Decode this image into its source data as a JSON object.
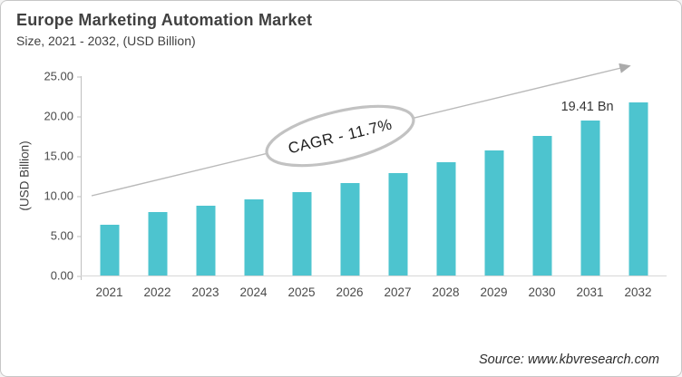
{
  "header": {
    "title": "Europe Marketing Automation Market",
    "subtitle": "Size, 2021 - 2032, (USD Billion)"
  },
  "chart_data": {
    "type": "bar",
    "title": "Europe Marketing Automation Market Size, 2021 - 2032, (USD Billion)",
    "categories": [
      "2021",
      "2022",
      "2023",
      "2024",
      "2025",
      "2026",
      "2027",
      "2028",
      "2029",
      "2030",
      "2031",
      "2032"
    ],
    "values": [
      6.4,
      8.0,
      8.8,
      9.6,
      10.5,
      11.6,
      12.8,
      14.2,
      15.7,
      17.5,
      19.41,
      21.7
    ],
    "xlabel": "",
    "ylabel": "(USD Billion)",
    "ylim": [
      0,
      25
    ],
    "y_ticks": [
      "25.00",
      "20.00",
      "15.00",
      "10.00",
      "5.00",
      "0.00"
    ],
    "grid": false,
    "legend": "none"
  },
  "annotations": {
    "cagr_label": "CAGR - 11.7%",
    "value_label": {
      "category": "2031",
      "index": 10,
      "text": "19.41 Bn"
    }
  },
  "footer": {
    "source": "Source: www.kbvresearch.com"
  },
  "colors": {
    "bar": "#4DC4CF",
    "title_text": "#404040",
    "axis_text": "#4A4A4A",
    "axis_line": "#BFBFBF",
    "arrow": "#B9B9B9",
    "ellipse_stroke": "#C2C2C2",
    "annotation_text": "#1F1F1F"
  }
}
